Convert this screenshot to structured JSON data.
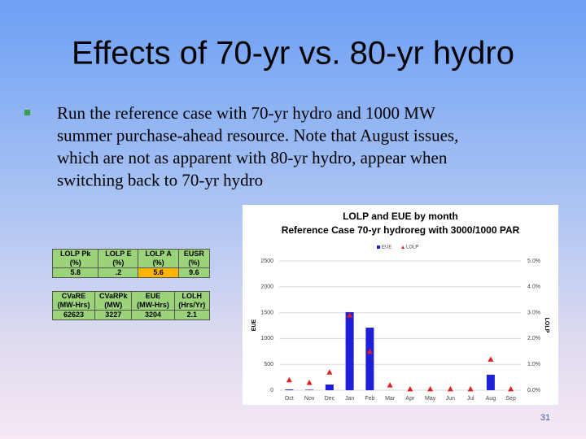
{
  "slide": {
    "title": "Effects of 70-yr vs. 80-yr hydro",
    "bullet": [
      "Run the reference case with 70-yr hydro and 1000 MW",
      "summer purchase-ahead resource.  Note that August issues,",
      "which are not as apparent with 80-yr hydro, appear when",
      "switching back to 70-yr hydro"
    ],
    "page_number": "31"
  },
  "tables": [
    {
      "rows": [
        [
          "LOLP Pk",
          "LOLP E",
          "LOLP A",
          "EUSR"
        ],
        [
          "(%)",
          "(%)",
          "(%)",
          "(%)"
        ],
        [
          "5.8",
          ".2",
          "5.6",
          "9.6"
        ]
      ]
    },
    {
      "rows": [
        [
          "CVaRE",
          "CVaRPk",
          "EUE",
          "LOLH"
        ],
        [
          "(MW-Hrs)",
          "(MW)",
          "(MW-Hrs)",
          "(Hrs/Yr)"
        ],
        [
          "62623",
          "3227",
          "3204",
          "2.1"
        ]
      ]
    }
  ],
  "chart_data": {
    "type": "bar",
    "title": "LOLP and EUE by month",
    "subtitle": "Reference Case 70-yr hydroreg with 3000/1000 PAR",
    "y_label": "EUE",
    "y2_label": "LOLP",
    "categories": [
      "Oct",
      "Nov",
      "Dec",
      "Jan",
      "Feb",
      "Mar",
      "Apr",
      "May",
      "Jun",
      "Jul",
      "Aug",
      "Sep"
    ],
    "series": [
      {
        "name": "EUE",
        "type": "bar",
        "color": "#1f1fd8",
        "values": [
          15,
          10,
          110,
          1510,
          1210,
          0,
          0,
          0,
          0,
          0,
          300,
          0
        ]
      },
      {
        "name": "LOLP",
        "type": "marker",
        "axis": "y2",
        "color": "#e02020",
        "values": [
          0.4,
          0.3,
          0.7,
          2.9,
          1.5,
          0.2,
          0.05,
          0.05,
          0.05,
          0.05,
          1.2,
          0.05
        ]
      }
    ],
    "ylim": [
      0,
      2500
    ],
    "yticks": [
      0,
      500,
      1000,
      1500,
      2000,
      2500
    ],
    "y2lim": [
      0,
      5
    ],
    "y2ticks": [
      {
        "value": 0,
        "label": "0.0%"
      },
      {
        "value": 1,
        "label": "1.0%"
      },
      {
        "value": 2,
        "label": "2.0%"
      },
      {
        "value": 3,
        "label": "3.0%"
      },
      {
        "value": 4,
        "label": "4.0%"
      },
      {
        "value": 5,
        "label": "5.0%"
      }
    ],
    "grid": true,
    "legend": "top"
  }
}
